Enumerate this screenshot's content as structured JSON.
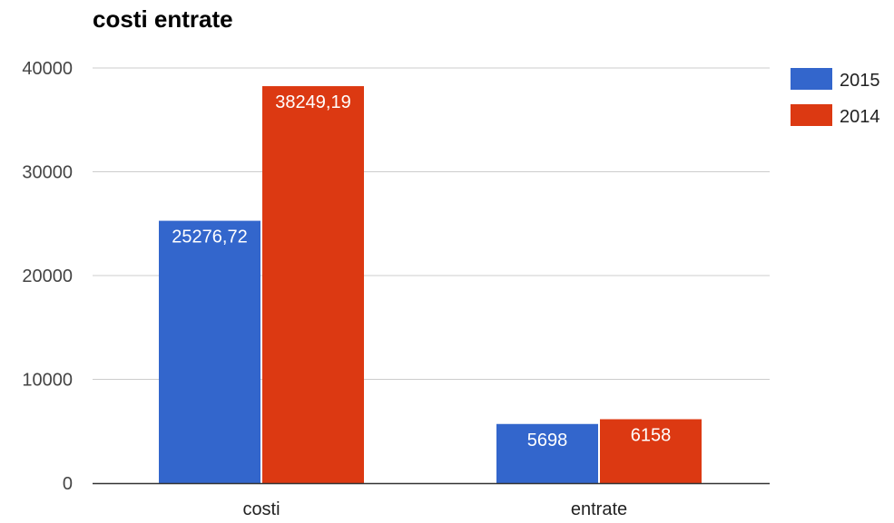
{
  "chart_data": {
    "type": "bar",
    "title": "costi entrate",
    "categories": [
      "costi",
      "entrate"
    ],
    "series": [
      {
        "name": "2015",
        "color": "#3366cc",
        "values": [
          25276.72,
          5698
        ],
        "labels": [
          "25276,72",
          "5698"
        ]
      },
      {
        "name": "2014",
        "color": "#dc3912",
        "values": [
          38249.19,
          6158
        ],
        "labels": [
          "38249,19",
          "6158"
        ]
      }
    ],
    "ylim": [
      0,
      40000
    ],
    "yticks": [
      0,
      10000,
      20000,
      30000,
      40000
    ],
    "ytick_labels": [
      "0",
      "10000",
      "20000",
      "30000",
      "40000"
    ],
    "grid": true,
    "legend": "right"
  }
}
